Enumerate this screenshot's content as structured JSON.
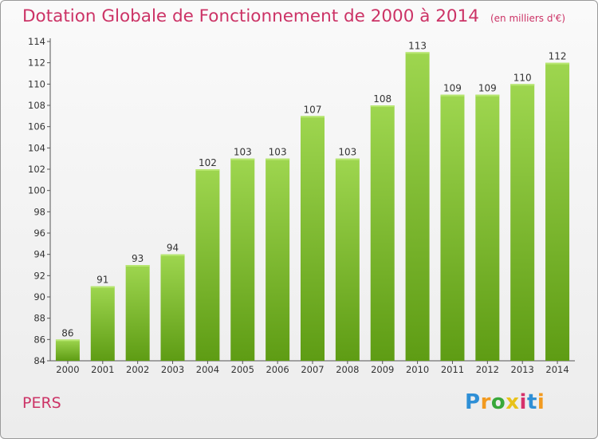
{
  "title": "Dotation Globale de Fonctionnement de 2000 à 2014",
  "unit_note": "(en milliers d'€)",
  "place": "PERS",
  "logo": "Proxiti",
  "colors": {
    "bar_top": "#9ed64f",
    "bar_bottom": "#5e9c14",
    "title": "#cc3366"
  },
  "chart_data": {
    "type": "bar",
    "categories": [
      "2000",
      "2001",
      "2002",
      "2003",
      "2004",
      "2005",
      "2006",
      "2007",
      "2008",
      "2009",
      "2010",
      "2011",
      "2012",
      "2013",
      "2014"
    ],
    "values": [
      86,
      91,
      93,
      94,
      102,
      103,
      103,
      107,
      103,
      108,
      113,
      109,
      109,
      110,
      112
    ],
    "ylim": [
      84,
      114
    ],
    "yticks": [
      84,
      86,
      88,
      90,
      92,
      94,
      96,
      98,
      100,
      102,
      104,
      106,
      108,
      110,
      112,
      114
    ],
    "grid": false,
    "data_labels": true
  }
}
